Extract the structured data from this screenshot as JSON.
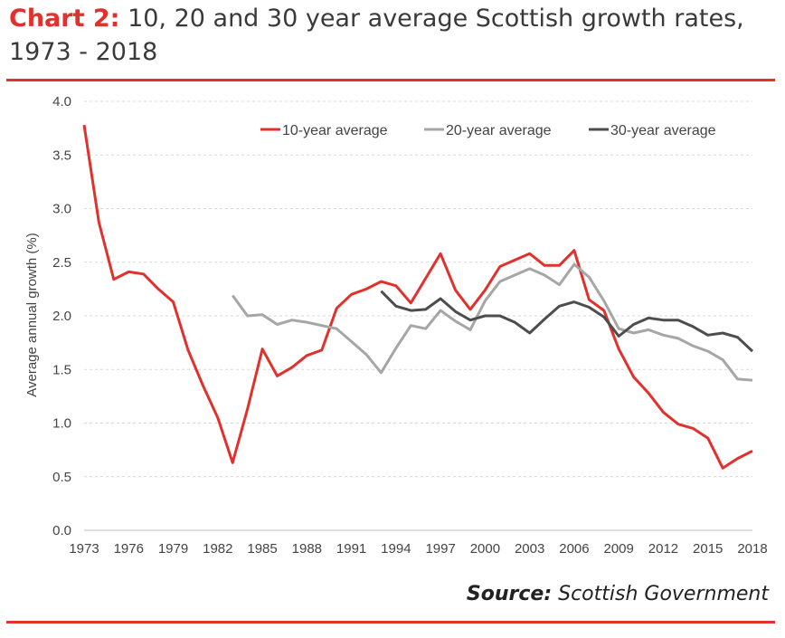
{
  "header": {
    "prefix": "Chart 2:",
    "title": "10, 20 and 30 year average Scottish growth rates, 1973 - 2018"
  },
  "footer": {
    "source_label": "Source:",
    "source_text": "Scottish Government"
  },
  "colors": {
    "accent": "#e0312c",
    "series_10": "#e0312c",
    "series_20": "#a6a6a6",
    "series_30": "#4d4d4d",
    "grid": "#d9d9d9",
    "axis": "#bfbfbf"
  },
  "chart_data": {
    "type": "line",
    "title": "10, 20 and 30 year average Scottish growth rates, 1973 - 2018",
    "xlabel": "",
    "ylabel": "Average annual growth (%)",
    "ylim": [
      0,
      4
    ],
    "y_ticks": [
      "0.0",
      "0.5",
      "1.0",
      "1.5",
      "2.0",
      "2.5",
      "3.0",
      "3.5",
      "4.0"
    ],
    "x_range": [
      1973,
      2018
    ],
    "x_ticks": [
      1973,
      1976,
      1979,
      1982,
      1985,
      1988,
      1991,
      1994,
      1997,
      2000,
      2003,
      2006,
      2009,
      2012,
      2015,
      2018
    ],
    "grid": "horizontal dashed",
    "legend_position": "top-right",
    "series": [
      {
        "name": "10-year average",
        "color": "#e0312c",
        "x": [
          1973,
          1974,
          1975,
          1976,
          1977,
          1978,
          1979,
          1980,
          1981,
          1982,
          1983,
          1984,
          1985,
          1986,
          1987,
          1988,
          1989,
          1990,
          1991,
          1992,
          1993,
          1994,
          1995,
          1996,
          1997,
          1998,
          1999,
          2000,
          2001,
          2002,
          2003,
          2004,
          2005,
          2006,
          2007,
          2008,
          2009,
          2010,
          2011,
          2012,
          2013,
          2014,
          2015,
          2016,
          2017,
          2018
        ],
        "values": [
          3.78,
          2.87,
          2.34,
          2.41,
          2.39,
          2.25,
          2.13,
          1.68,
          1.35,
          1.05,
          0.63,
          1.13,
          1.69,
          1.44,
          1.52,
          1.63,
          1.68,
          2.07,
          2.2,
          2.25,
          2.32,
          2.28,
          2.12,
          2.35,
          2.58,
          2.24,
          2.06,
          2.24,
          2.46,
          2.52,
          2.58,
          2.47,
          2.47,
          2.61,
          2.15,
          2.05,
          1.69,
          1.43,
          1.28,
          1.1,
          0.99,
          0.95,
          0.86,
          0.58,
          0.67,
          0.74
        ]
      },
      {
        "name": "20-year average",
        "color": "#a6a6a6",
        "x": [
          1983,
          1984,
          1985,
          1986,
          1987,
          1988,
          1989,
          1990,
          1991,
          1992,
          1993,
          1994,
          1995,
          1996,
          1997,
          1998,
          1999,
          2000,
          2001,
          2002,
          2003,
          2004,
          2005,
          2006,
          2007,
          2008,
          2009,
          2010,
          2011,
          2012,
          2013,
          2014,
          2015,
          2016,
          2017,
          2018
        ],
        "values": [
          2.19,
          2.0,
          2.01,
          1.92,
          1.96,
          1.94,
          1.91,
          1.88,
          1.76,
          1.64,
          1.47,
          1.7,
          1.91,
          1.88,
          2.05,
          1.95,
          1.87,
          2.14,
          2.32,
          2.38,
          2.44,
          2.38,
          2.29,
          2.48,
          2.36,
          2.14,
          1.88,
          1.84,
          1.87,
          1.82,
          1.79,
          1.72,
          1.67,
          1.59,
          1.41,
          1.4
        ]
      },
      {
        "name": "30-year average",
        "color": "#4d4d4d",
        "x": [
          1993,
          1994,
          1995,
          1996,
          1997,
          1998,
          1999,
          2000,
          2001,
          2002,
          2003,
          2004,
          2005,
          2006,
          2007,
          2008,
          2009,
          2010,
          2011,
          2012,
          2013,
          2014,
          2015,
          2016,
          2017,
          2018
        ],
        "values": [
          2.23,
          2.09,
          2.05,
          2.06,
          2.16,
          2.04,
          1.96,
          2.0,
          2.0,
          1.94,
          1.84,
          1.97,
          2.09,
          2.13,
          2.08,
          1.99,
          1.81,
          1.92,
          1.98,
          1.96,
          1.96,
          1.9,
          1.82,
          1.84,
          1.8,
          1.67
        ]
      }
    ]
  }
}
